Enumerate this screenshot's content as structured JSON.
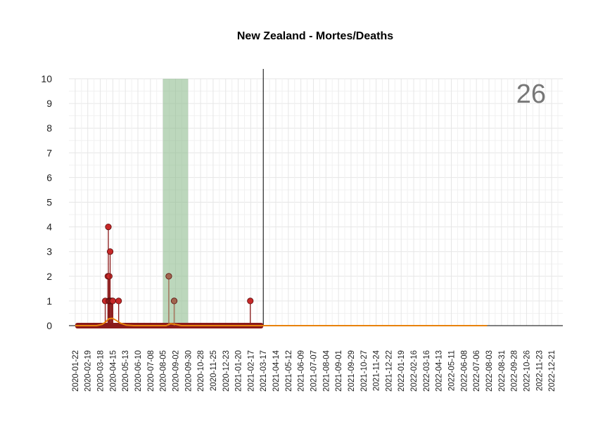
{
  "chart_data": {
    "type": "scatter",
    "title": "New Zealand - Mortes/Deaths",
    "corner_value": "26",
    "xlabel": "",
    "ylabel": "",
    "ylim": [
      0,
      10
    ],
    "y_ticks": [
      0,
      1,
      2,
      3,
      4,
      5,
      6,
      7,
      8,
      9,
      10
    ],
    "x_range": [
      "2020-01-08",
      "2023-01-15"
    ],
    "x_tick_labels": [
      "2020-01-22",
      "2020-02-19",
      "2020-03-18",
      "2020-04-15",
      "2020-05-13",
      "2020-06-10",
      "2020-07-08",
      "2020-08-05",
      "2020-09-02",
      "2020-09-30",
      "2020-10-28",
      "2020-11-25",
      "2020-12-23",
      "2021-01-20",
      "2021-02-17",
      "2021-03-17",
      "2021-04-14",
      "2021-05-12",
      "2021-06-09",
      "2021-07-07",
      "2021-08-04",
      "2021-09-01",
      "2021-09-29",
      "2021-10-27",
      "2021-11-24",
      "2021-12-22",
      "2022-01-19",
      "2022-02-16",
      "2022-03-16",
      "2022-04-13",
      "2022-05-11",
      "2022-06-08",
      "2022-07-06",
      "2022-08-03",
      "2022-08-31",
      "2022-09-28",
      "2022-10-26",
      "2022-11-23",
      "2022-12-21"
    ],
    "vertical_line_date": "2021-03-17",
    "highlight_range": [
      "2020-08-05",
      "2020-09-30"
    ],
    "data_end_date": "2021-03-17",
    "daily_deaths": [
      {
        "date": "2020-03-29",
        "value": 1
      },
      {
        "date": "2020-04-04",
        "value": 2
      },
      {
        "date": "2020-04-05",
        "value": 4
      },
      {
        "date": "2020-04-06",
        "value": 1
      },
      {
        "date": "2020-04-07",
        "value": 2
      },
      {
        "date": "2020-04-08",
        "value": 1
      },
      {
        "date": "2020-04-09",
        "value": 3
      },
      {
        "date": "2020-04-10",
        "value": 1
      },
      {
        "date": "2020-04-12",
        "value": 1
      },
      {
        "date": "2020-04-14",
        "value": 1
      },
      {
        "date": "2020-04-15",
        "value": 1
      },
      {
        "date": "2020-04-28",
        "value": 1
      },
      {
        "date": "2020-08-18",
        "value": 2
      },
      {
        "date": "2020-08-30",
        "value": 1
      },
      {
        "date": "2021-02-16",
        "value": 1
      }
    ],
    "moving_average": [
      {
        "date": "2020-01-22",
        "value": 0
      },
      {
        "date": "2020-03-10",
        "value": 0
      },
      {
        "date": "2020-03-22",
        "value": 0.05
      },
      {
        "date": "2020-03-30",
        "value": 0.15
      },
      {
        "date": "2020-04-06",
        "value": 0.28
      },
      {
        "date": "2020-04-14",
        "value": 0.3
      },
      {
        "date": "2020-04-22",
        "value": 0.22
      },
      {
        "date": "2020-05-02",
        "value": 0.1
      },
      {
        "date": "2020-05-15",
        "value": 0.02
      },
      {
        "date": "2020-06-01",
        "value": 0
      },
      {
        "date": "2020-08-12",
        "value": 0
      },
      {
        "date": "2020-08-22",
        "value": 0.08
      },
      {
        "date": "2020-09-02",
        "value": 0.05
      },
      {
        "date": "2020-09-15",
        "value": 0
      },
      {
        "date": "2022-07-30",
        "value": 0
      }
    ],
    "colors": {
      "grid": "#e6e6e6",
      "highlight": "#8fbc8f",
      "bar": "#8b1a1a",
      "point": "#c62828",
      "point_muted": "#a0654f",
      "moving_average": "#e8820c",
      "axis": "#000000",
      "corner_text": "#777777"
    }
  }
}
